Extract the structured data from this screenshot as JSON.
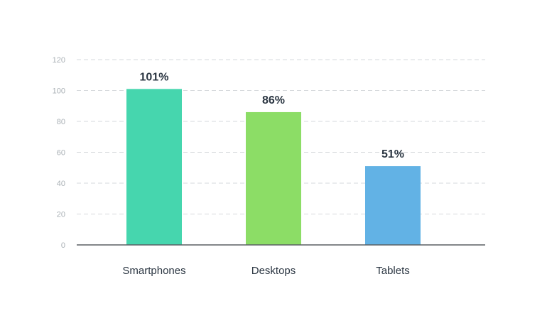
{
  "chart_data": {
    "type": "bar",
    "categories": [
      "Smartphones",
      "Desktops",
      "Tablets"
    ],
    "values": [
      101,
      86,
      51
    ],
    "value_labels": [
      "101%",
      "86%",
      "51%"
    ],
    "ylim": [
      0,
      120
    ],
    "yticks": [
      0,
      20,
      40,
      60,
      80,
      100,
      120
    ],
    "grid": true,
    "colors": [
      "#46d6ae",
      "#8cdd66",
      "#62b2e5"
    ]
  }
}
